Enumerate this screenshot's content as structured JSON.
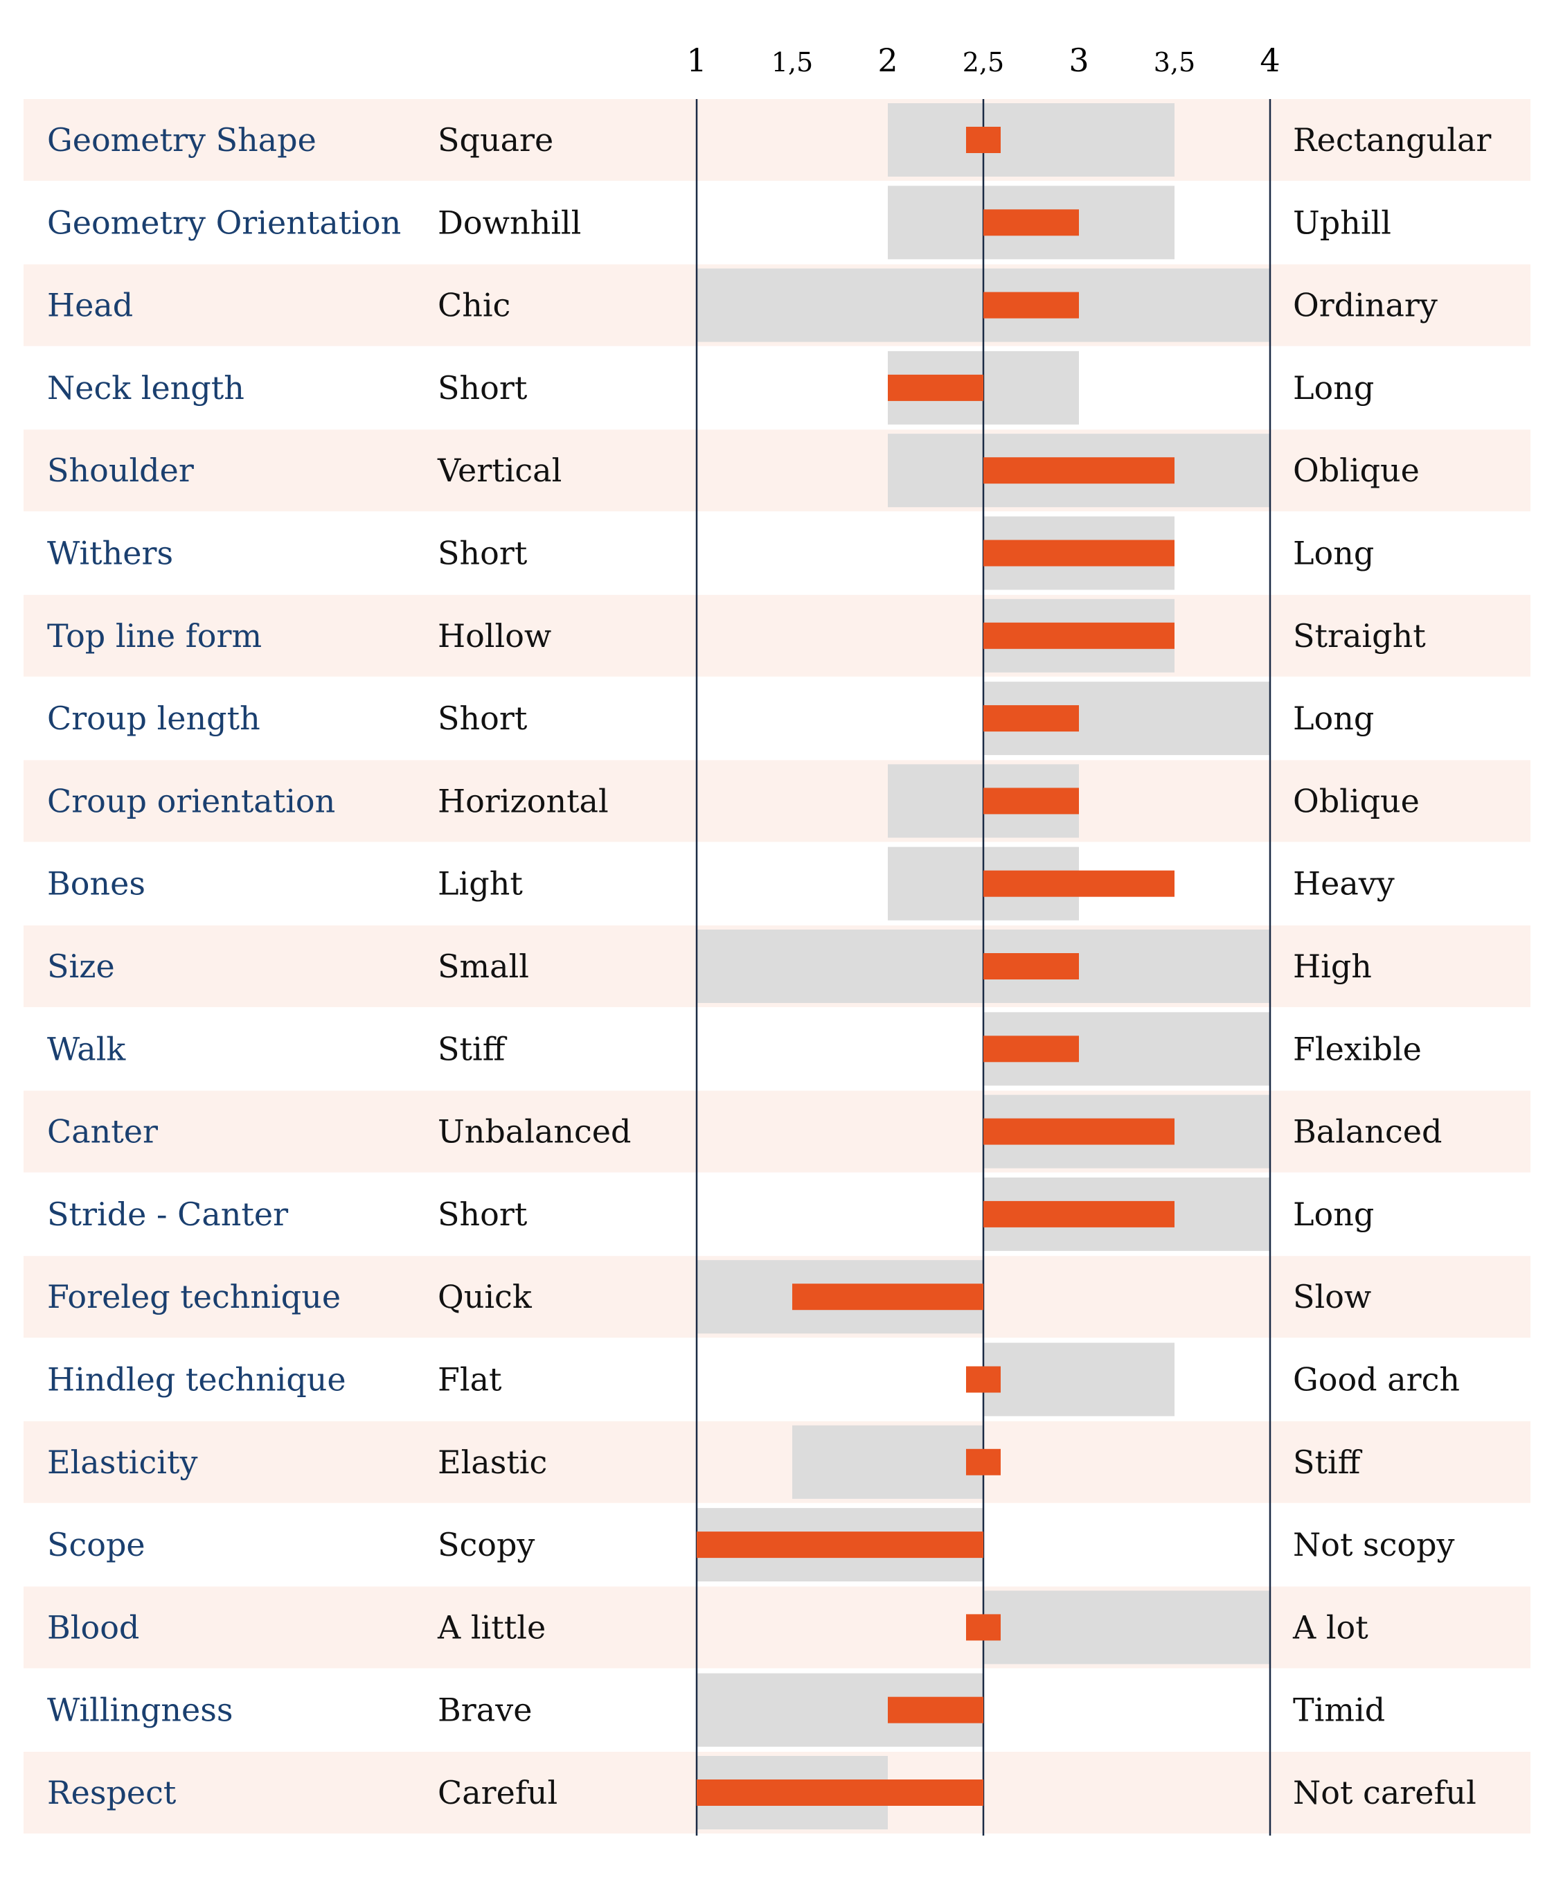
{
  "chart_data": {
    "type": "bar",
    "title": "",
    "xlabel": "",
    "ylabel": "",
    "xlim": [
      1,
      4
    ],
    "x_ticks": [
      "1",
      "1,5",
      "2",
      "2,5",
      "3",
      "3,5",
      "4"
    ],
    "x_tick_values": [
      1,
      1.5,
      2,
      2.5,
      3,
      3.5,
      4
    ],
    "baseline": 2.5,
    "grid": false,
    "colors": {
      "value_bar": "#e8531f",
      "range_band": "#dcdcdc",
      "row_shade": "#fdf1ec",
      "trait_text": "#1a3f6f",
      "pole_text": "#111111",
      "axis_line": "#1a2a44"
    },
    "rows": [
      {
        "trait": "Geometry Shape",
        "left": "Square",
        "right": "Rectangular",
        "value": 2.5,
        "range": [
          2,
          3.5
        ]
      },
      {
        "trait": "Geometry Orientation",
        "left": "Downhill",
        "right": "Uphill",
        "value": 3,
        "range": [
          2,
          3.5
        ]
      },
      {
        "trait": "Head",
        "left": "Chic",
        "right": "Ordinary",
        "value": 3,
        "range": [
          1,
          4
        ]
      },
      {
        "trait": "Neck length",
        "left": "Short",
        "right": "Long",
        "value": 2,
        "range": [
          2,
          3
        ]
      },
      {
        "trait": "Shoulder",
        "left": "Vertical",
        "right": "Oblique",
        "value": 3.5,
        "range": [
          2,
          4
        ]
      },
      {
        "trait": "Withers",
        "left": "Short",
        "right": "Long",
        "value": 3.5,
        "range": [
          2.5,
          3.5
        ]
      },
      {
        "trait": "Top line form",
        "left": "Hollow",
        "right": "Straight",
        "value": 3.5,
        "range": [
          2.5,
          3.5
        ]
      },
      {
        "trait": "Croup length",
        "left": "Short",
        "right": "Long",
        "value": 3,
        "range": [
          2.5,
          4
        ]
      },
      {
        "trait": "Croup orientation",
        "left": "Horizontal",
        "right": "Oblique",
        "value": 3,
        "range": [
          2,
          3
        ]
      },
      {
        "trait": "Bones",
        "left": "Light",
        "right": "Heavy",
        "value": 3.5,
        "range": [
          2,
          3
        ]
      },
      {
        "trait": "Size",
        "left": "Small",
        "right": "High",
        "value": 3,
        "range": [
          1,
          4
        ]
      },
      {
        "trait": "Walk",
        "left": "Stiff",
        "right": "Flexible",
        "value": 3,
        "range": [
          2.5,
          4
        ]
      },
      {
        "trait": "Canter",
        "left": "Unbalanced",
        "right": "Balanced",
        "value": 3.5,
        "range": [
          2.5,
          4
        ]
      },
      {
        "trait": "Stride - Canter",
        "left": "Short",
        "right": "Long",
        "value": 3.5,
        "range": [
          2.5,
          4
        ]
      },
      {
        "trait": "Foreleg technique",
        "left": "Quick",
        "right": "Slow",
        "value": 1.5,
        "range": [
          1,
          2.5
        ]
      },
      {
        "trait": "Hindleg technique",
        "left": "Flat",
        "right": "Good arch",
        "value": 2.5,
        "range": [
          2.5,
          3.5
        ]
      },
      {
        "trait": "Elasticity",
        "left": "Elastic",
        "right": "Stiff",
        "value": 2.5,
        "range": [
          1.5,
          2.5
        ]
      },
      {
        "trait": "Scope",
        "left": "Scopy",
        "right": "Not scopy",
        "value": 1,
        "range": [
          1,
          2.5
        ]
      },
      {
        "trait": "Blood",
        "left": "A little",
        "right": "A lot",
        "value": 2.5,
        "range": [
          2.5,
          4
        ]
      },
      {
        "trait": "Willingness",
        "left": "Brave",
        "right": "Timid",
        "value": 2,
        "range": [
          1,
          2.5
        ]
      },
      {
        "trait": "Respect",
        "left": "Careful",
        "right": "Not careful",
        "value": 1,
        "range": [
          1,
          2
        ]
      }
    ]
  }
}
